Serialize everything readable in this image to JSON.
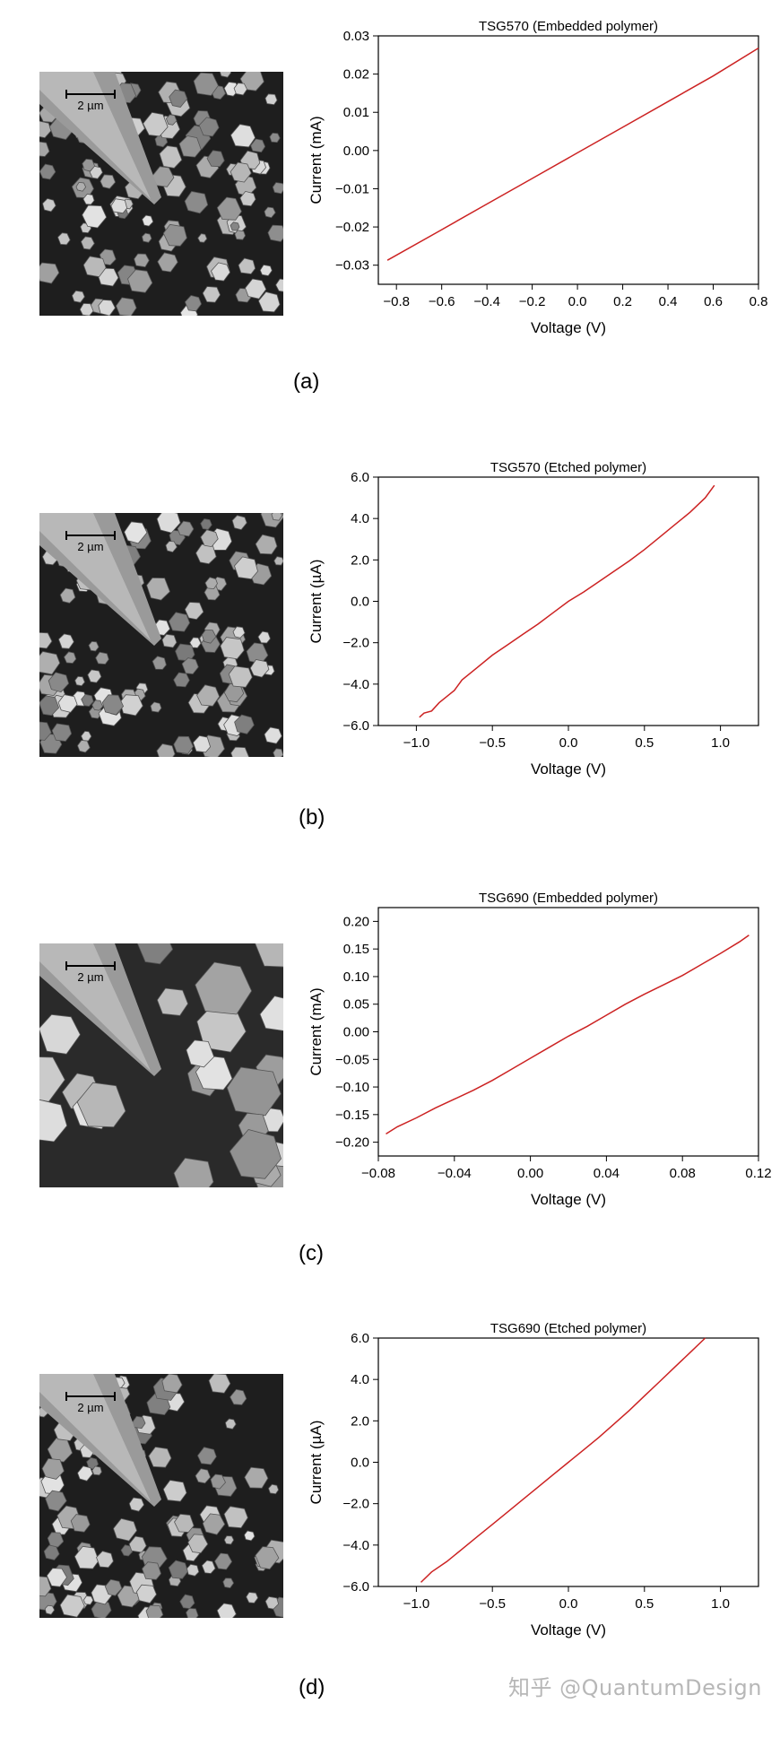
{
  "figure": {
    "scale_bar_label": "2 µm",
    "watermark": "知乎 @QuantumDesign"
  },
  "panels": [
    {
      "label": "(a)"
    },
    {
      "label": "(b)"
    },
    {
      "label": "(c)"
    },
    {
      "label": "(d)"
    }
  ],
  "chart_data": [
    {
      "type": "line",
      "title": "TSG570 (Embedded polymer)",
      "xlabel": "Voltage (V)",
      "ylabel": "Current (mA)",
      "xlim": [
        -0.88,
        0.8
      ],
      "ylim": [
        -0.035,
        0.03
      ],
      "xticks": [
        -0.8,
        -0.6,
        -0.4,
        -0.2,
        0.0,
        0.2,
        0.4,
        0.6,
        0.8
      ],
      "yticks": [
        -0.03,
        -0.02,
        -0.01,
        0.0,
        0.01,
        0.02,
        0.03
      ],
      "xtick_labels": [
        "−0.8",
        "−0.6",
        "−0.4",
        "−0.2",
        "0.0",
        "0.2",
        "0.4",
        "0.6",
        "0.8"
      ],
      "ytick_labels": [
        "−0.03",
        "−0.02",
        "−0.01",
        "0.00",
        "0.01",
        "0.02",
        "0.03"
      ],
      "color": "#cc2222",
      "series": [
        {
          "x": [
            -0.84,
            -0.6,
            -0.4,
            -0.2,
            0.0,
            0.2,
            0.4,
            0.6,
            0.8
          ],
          "y": [
            -0.0287,
            -0.0207,
            -0.014,
            -0.0073,
            -0.0006,
            0.0061,
            0.0128,
            0.0195,
            0.0268
          ]
        }
      ]
    },
    {
      "type": "line",
      "title": "TSG570 (Etched polymer)",
      "xlabel": "Voltage (V)",
      "ylabel": "Current (µA)",
      "xlim": [
        -1.25,
        1.25
      ],
      "ylim": [
        -6.0,
        6.0
      ],
      "xticks": [
        -1.0,
        -0.5,
        0.0,
        0.5,
        1.0
      ],
      "yticks": [
        -6.0,
        -4.0,
        -2.0,
        0.0,
        2.0,
        4.0,
        6.0
      ],
      "xtick_labels": [
        "−1.0",
        "−0.5",
        "0.0",
        "0.5",
        "1.0"
      ],
      "ytick_labels": [
        "−6.0",
        "−4.0",
        "−2.0",
        "0.0",
        "2.0",
        "4.0",
        "6.0"
      ],
      "color": "#cc2222",
      "series": [
        {
          "x": [
            -0.98,
            -0.95,
            -0.9,
            -0.85,
            -0.8,
            -0.75,
            -0.7,
            -0.6,
            -0.5,
            -0.4,
            -0.3,
            -0.2,
            -0.1,
            0.0,
            0.1,
            0.2,
            0.3,
            0.4,
            0.5,
            0.6,
            0.7,
            0.8,
            0.9,
            0.96
          ],
          "y": [
            -5.6,
            -5.4,
            -5.3,
            -4.9,
            -4.6,
            -4.3,
            -3.8,
            -3.2,
            -2.6,
            -2.1,
            -1.6,
            -1.1,
            -0.55,
            0.0,
            0.45,
            0.95,
            1.45,
            1.95,
            2.5,
            3.1,
            3.7,
            4.3,
            5.0,
            5.6
          ]
        }
      ]
    },
    {
      "type": "line",
      "title": "TSG690 (Embedded polymer)",
      "xlabel": "Voltage (V)",
      "ylabel": "Current (mA)",
      "xlim": [
        -0.08,
        0.12
      ],
      "ylim": [
        -0.225,
        0.225
      ],
      "xticks": [
        -0.08,
        -0.04,
        0.0,
        0.04,
        0.08,
        0.12
      ],
      "yticks": [
        -0.2,
        -0.15,
        -0.1,
        -0.05,
        0.0,
        0.05,
        0.1,
        0.15,
        0.2
      ],
      "xtick_labels": [
        "−0.08",
        "−0.04",
        "0.00",
        "0.04",
        "0.08",
        "0.12"
      ],
      "ytick_labels": [
        "−0.20",
        "−0.15",
        "−0.10",
        "−0.05",
        "0.00",
        "0.05",
        "0.10",
        "0.15",
        "0.20"
      ],
      "color": "#cc2222",
      "series": [
        {
          "x": [
            -0.076,
            -0.07,
            -0.06,
            -0.05,
            -0.04,
            -0.03,
            -0.02,
            -0.01,
            0.0,
            0.01,
            0.02,
            0.03,
            0.04,
            0.05,
            0.06,
            0.07,
            0.08,
            0.09,
            0.1,
            0.11,
            0.115
          ],
          "y": [
            -0.185,
            -0.172,
            -0.156,
            -0.138,
            -0.122,
            -0.106,
            -0.088,
            -0.068,
            -0.048,
            -0.028,
            -0.008,
            0.01,
            0.03,
            0.05,
            0.068,
            0.085,
            0.102,
            0.122,
            0.142,
            0.163,
            0.175
          ]
        }
      ]
    },
    {
      "type": "line",
      "title": "TSG690 (Etched polymer)",
      "xlabel": "Voltage (V)",
      "ylabel": "Current (µA)",
      "xlim": [
        -1.25,
        1.25
      ],
      "ylim": [
        -6.0,
        6.0
      ],
      "xticks": [
        -1.0,
        -0.5,
        0.0,
        0.5,
        1.0
      ],
      "yticks": [
        -6.0,
        -4.0,
        -2.0,
        0.0,
        2.0,
        4.0,
        6.0
      ],
      "xtick_labels": [
        "−1.0",
        "−0.5",
        "0.0",
        "0.5",
        "1.0"
      ],
      "ytick_labels": [
        "−6.0",
        "−4.0",
        "−2.0",
        "0.0",
        "2.0",
        "4.0",
        "6.0"
      ],
      "color": "#cc2222",
      "series": [
        {
          "x": [
            -0.97,
            -0.9,
            -0.8,
            -0.7,
            -0.6,
            -0.5,
            -0.4,
            -0.3,
            -0.2,
            -0.1,
            0.0,
            0.1,
            0.2,
            0.3,
            0.4,
            0.5,
            0.6,
            0.7,
            0.8,
            0.9
          ],
          "y": [
            -5.8,
            -5.3,
            -4.8,
            -4.2,
            -3.6,
            -3.0,
            -2.4,
            -1.8,
            -1.2,
            -0.6,
            0.0,
            0.6,
            1.2,
            1.85,
            2.5,
            3.2,
            3.9,
            4.6,
            5.3,
            6.0
          ]
        }
      ]
    }
  ]
}
